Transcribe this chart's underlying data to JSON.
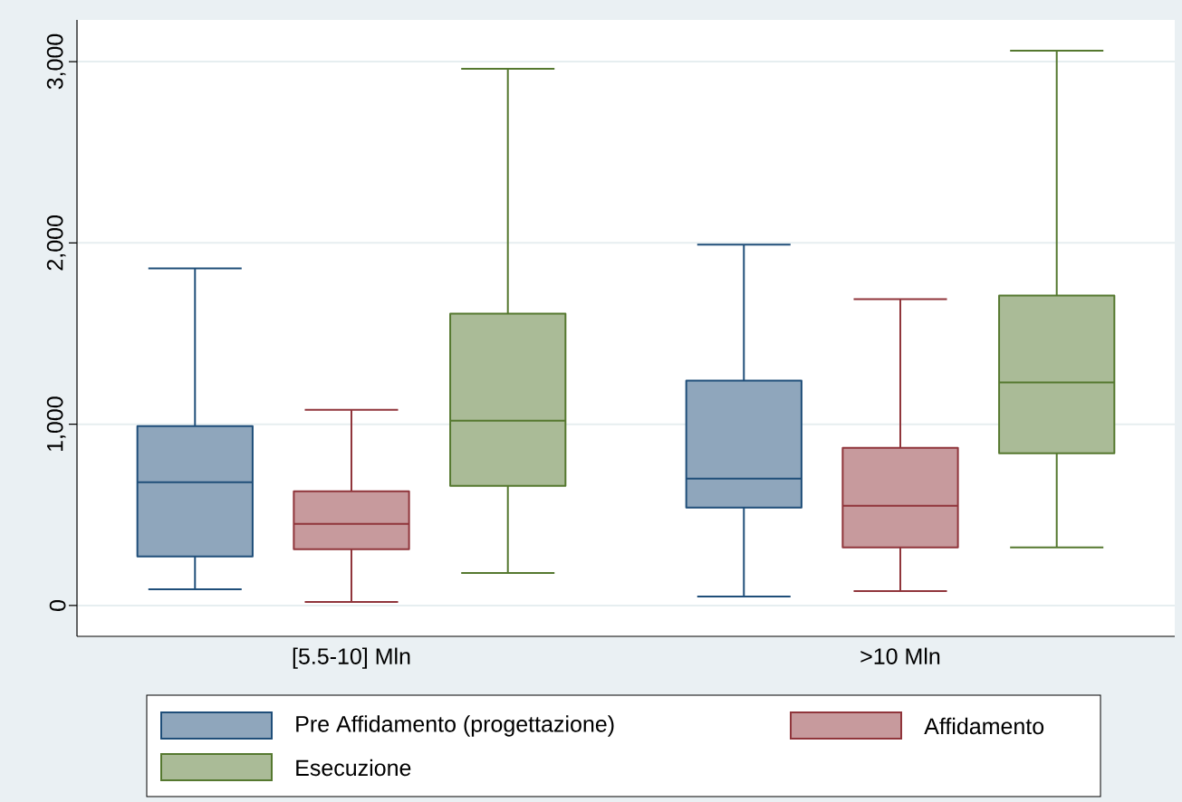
{
  "chart_data": {
    "type": "box",
    "categories": [
      "[5.5-10] Mln",
      ">10 Mln"
    ],
    "series": [
      {
        "name": "Pre Affidamento (progettazione)",
        "color": "#1f4e79",
        "boxes": [
          {
            "low": 90,
            "q1": 270,
            "median": 680,
            "q3": 990,
            "high": 1860
          },
          {
            "low": 50,
            "q1": 540,
            "median": 700,
            "q3": 1240,
            "high": 1990
          }
        ]
      },
      {
        "name": "Affidamento",
        "color": "#90353b",
        "boxes": [
          {
            "low": 20,
            "q1": 310,
            "median": 450,
            "q3": 630,
            "high": 1080
          },
          {
            "low": 80,
            "q1": 320,
            "median": 550,
            "q3": 870,
            "high": 1690
          }
        ]
      },
      {
        "name": "Esecuzione",
        "color": "#55782f",
        "boxes": [
          {
            "low": 180,
            "q1": 660,
            "median": 1020,
            "q3": 1610,
            "high": 2960
          },
          {
            "low": 320,
            "q1": 840,
            "median": 1230,
            "q3": 1710,
            "high": 3060
          }
        ]
      }
    ],
    "ylim": [
      -170,
      3230
    ],
    "yticks": [
      0,
      {
        "value": 1000,
        "label": "1,000"
      },
      {
        "value": 2000,
        "label": "2,000"
      },
      {
        "value": 3000,
        "label": "3,000"
      }
    ],
    "grid": "y",
    "legend": "bottom"
  }
}
